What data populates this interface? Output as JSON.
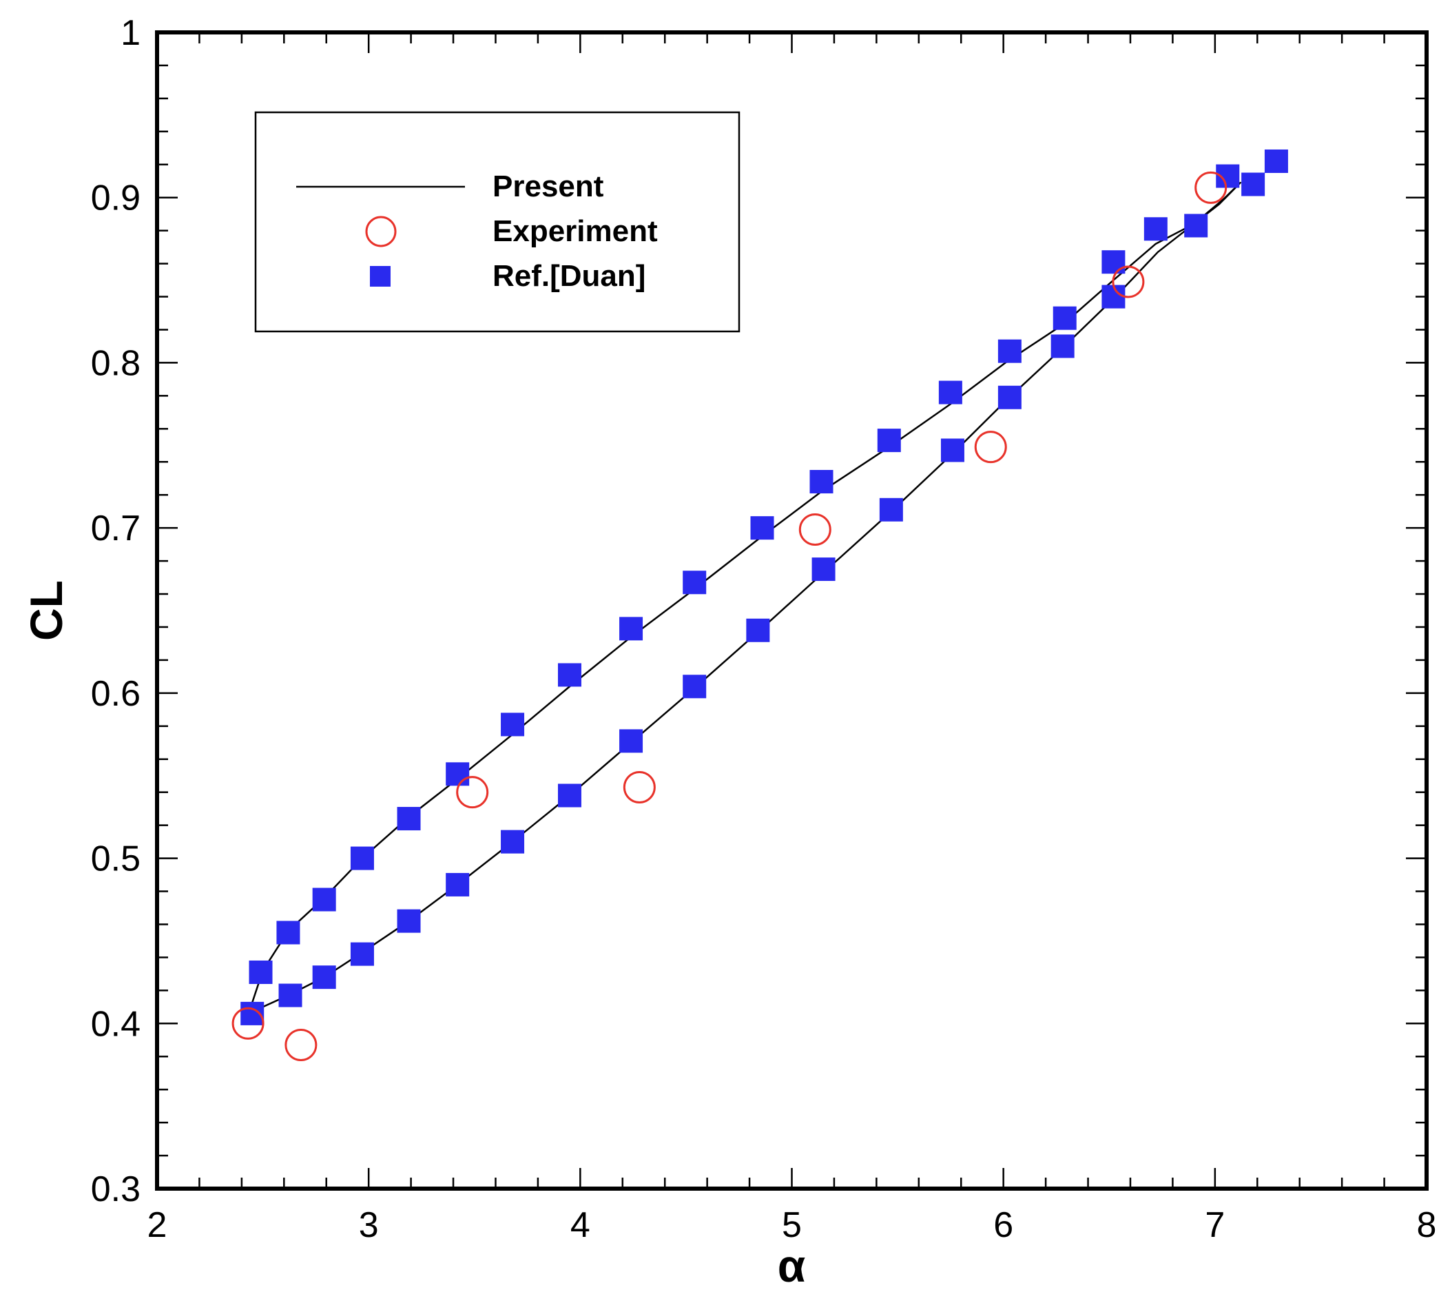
{
  "chart_data": {
    "type": "scatter",
    "title": "",
    "xlabel": "α",
    "ylabel": "CL",
    "xlim": [
      2,
      8
    ],
    "ylim": [
      0.3,
      1
    ],
    "x_ticks": [
      "2",
      "3",
      "4",
      "5",
      "6",
      "7",
      "8"
    ],
    "y_ticks": [
      "0.3",
      "0.4",
      "0.5",
      "0.6",
      "0.7",
      "0.8",
      "0.9",
      "1"
    ],
    "legend_position": "top-left",
    "grid": false,
    "series": [
      {
        "name": "Present",
        "style": "line",
        "color": "#000000",
        "points": [
          [
            2.43,
            0.405
          ],
          [
            2.5,
            0.432
          ],
          [
            2.62,
            0.456
          ],
          [
            2.79,
            0.476
          ],
          [
            2.97,
            0.5
          ],
          [
            3.19,
            0.525
          ],
          [
            3.42,
            0.548
          ],
          [
            3.68,
            0.575
          ],
          [
            3.95,
            0.604
          ],
          [
            4.24,
            0.634
          ],
          [
            4.54,
            0.663
          ],
          [
            4.86,
            0.695
          ],
          [
            5.14,
            0.722
          ],
          [
            5.46,
            0.749
          ],
          [
            5.75,
            0.775
          ],
          [
            6.02,
            0.801
          ],
          [
            6.28,
            0.823
          ],
          [
            6.52,
            0.85
          ],
          [
            6.72,
            0.872
          ],
          [
            6.9,
            0.884
          ],
          [
            7.02,
            0.896
          ],
          [
            7.12,
            0.909
          ],
          [
            7.04,
            0.899
          ],
          [
            6.9,
            0.884
          ],
          [
            6.73,
            0.867
          ],
          [
            6.53,
            0.84
          ],
          [
            6.28,
            0.809
          ],
          [
            6.02,
            0.778
          ],
          [
            5.76,
            0.745
          ],
          [
            5.47,
            0.71
          ],
          [
            5.15,
            0.673
          ],
          [
            4.84,
            0.637
          ],
          [
            4.54,
            0.603
          ],
          [
            4.24,
            0.57
          ],
          [
            3.95,
            0.538
          ],
          [
            3.68,
            0.51
          ],
          [
            3.42,
            0.484
          ],
          [
            3.19,
            0.462
          ],
          [
            2.97,
            0.443
          ],
          [
            2.79,
            0.428
          ],
          [
            2.62,
            0.417
          ],
          [
            2.43,
            0.406
          ]
        ]
      },
      {
        "name": "Experiment",
        "style": "open-circle",
        "color": "#e8322a",
        "points": [
          [
            2.43,
            0.4
          ],
          [
            2.68,
            0.387
          ],
          [
            3.49,
            0.54
          ],
          [
            4.28,
            0.543
          ],
          [
            5.11,
            0.699
          ],
          [
            5.94,
            0.749
          ],
          [
            6.59,
            0.849
          ],
          [
            6.98,
            0.906
          ]
        ]
      },
      {
        "name": "Ref.[Duan]",
        "style": "filled-square",
        "color": "#2a2aee",
        "points": [
          [
            2.45,
            0.406
          ],
          [
            2.49,
            0.431
          ],
          [
            2.62,
            0.455
          ],
          [
            2.79,
            0.475
          ],
          [
            2.97,
            0.5
          ],
          [
            3.19,
            0.524
          ],
          [
            3.42,
            0.551
          ],
          [
            3.68,
            0.581
          ],
          [
            3.95,
            0.611
          ],
          [
            4.24,
            0.639
          ],
          [
            4.54,
            0.667
          ],
          [
            4.86,
            0.7
          ],
          [
            5.14,
            0.728
          ],
          [
            5.46,
            0.753
          ],
          [
            5.75,
            0.782
          ],
          [
            6.03,
            0.807
          ],
          [
            6.29,
            0.827
          ],
          [
            6.52,
            0.861
          ],
          [
            6.72,
            0.881
          ],
          [
            6.91,
            0.883
          ],
          [
            7.06,
            0.913
          ],
          [
            7.18,
            0.908
          ],
          [
            7.29,
            0.922
          ],
          [
            2.63,
            0.417
          ],
          [
            2.79,
            0.428
          ],
          [
            2.97,
            0.442
          ],
          [
            3.19,
            0.462
          ],
          [
            3.42,
            0.484
          ],
          [
            3.68,
            0.51
          ],
          [
            3.95,
            0.538
          ],
          [
            4.24,
            0.571
          ],
          [
            4.54,
            0.604
          ],
          [
            4.84,
            0.638
          ],
          [
            5.15,
            0.675
          ],
          [
            5.47,
            0.711
          ],
          [
            5.76,
            0.747
          ],
          [
            6.03,
            0.779
          ],
          [
            6.28,
            0.81
          ],
          [
            6.52,
            0.84
          ]
        ]
      }
    ]
  }
}
